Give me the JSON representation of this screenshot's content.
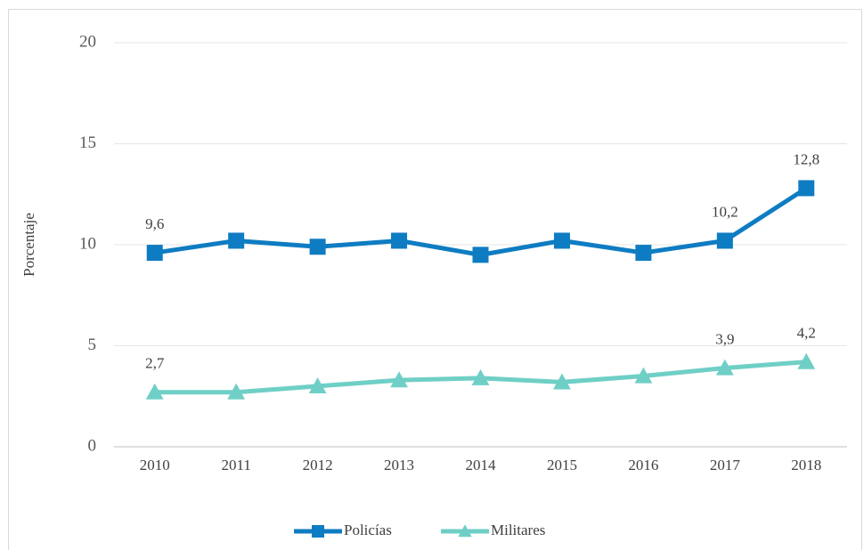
{
  "chart_data": {
    "type": "line",
    "ylabel": "Porcentaje",
    "categories": [
      "2010",
      "2011",
      "2012",
      "2013",
      "2014",
      "2015",
      "2016",
      "2017",
      "2018"
    ],
    "series": [
      {
        "name": "Policías",
        "color": "#0e7cc2",
        "marker": "square",
        "values": [
          9.6,
          10.2,
          9.9,
          10.2,
          9.5,
          10.2,
          9.6,
          10.2,
          12.8
        ],
        "value_labels": [
          "9,6",
          null,
          null,
          null,
          null,
          null,
          null,
          "10,2",
          "12,8"
        ]
      },
      {
        "name": "Militares",
        "color": "#6fcfc6",
        "marker": "triangle",
        "values": [
          2.7,
          2.7,
          3.0,
          3.3,
          3.4,
          3.2,
          3.5,
          3.9,
          4.2
        ],
        "value_labels": [
          "2,7",
          null,
          null,
          null,
          null,
          null,
          null,
          "3,9",
          "4,2"
        ]
      }
    ],
    "ylim": [
      0,
      20
    ],
    "yticks": [
      0,
      5,
      10,
      15,
      20
    ],
    "grid": true,
    "legend": "bottom"
  }
}
